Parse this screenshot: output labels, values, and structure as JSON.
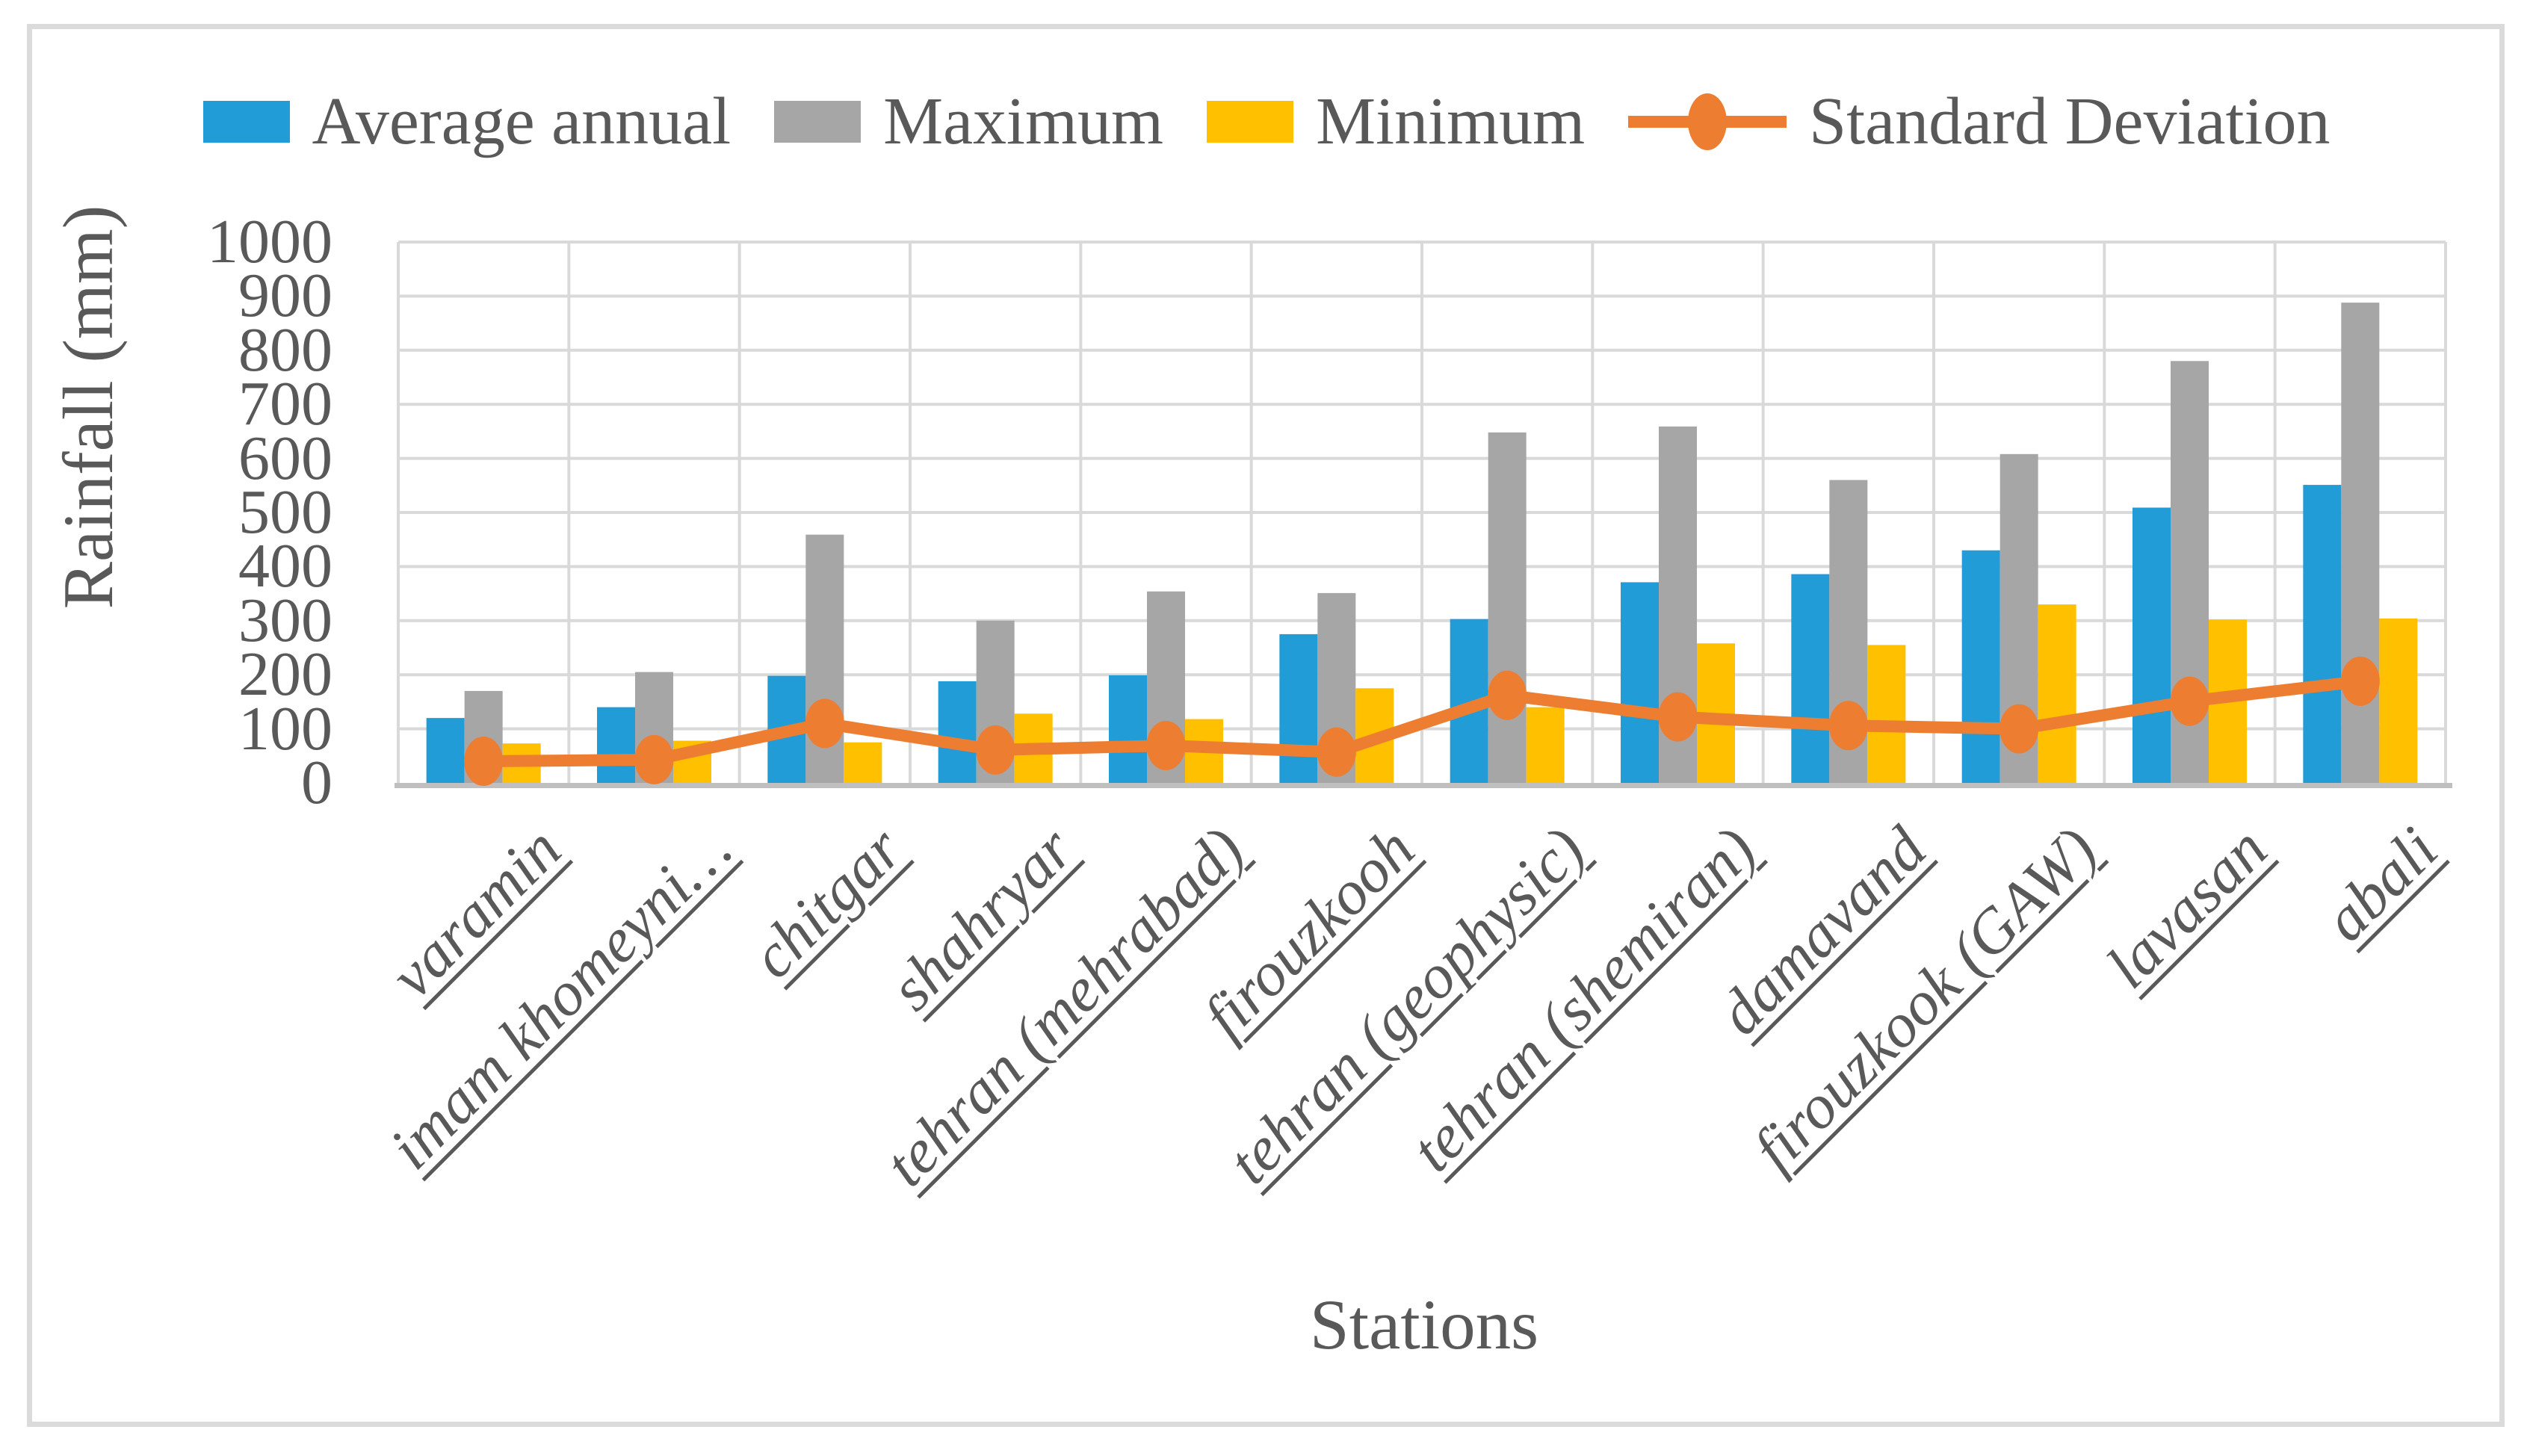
{
  "figure": {
    "background": "#ffffff",
    "frame_color": "#dbdbdb"
  },
  "legend": {
    "items": [
      {
        "label": "Average annual",
        "color": "#219cd7",
        "marker": "square"
      },
      {
        "label": "Maximum",
        "color": "#a6a6a6",
        "marker": "square"
      },
      {
        "label": "Minimum",
        "color": "#ffc000",
        "marker": "square"
      },
      {
        "label": "Standard Deviation",
        "color": "#ed7d31",
        "marker": "line-circle"
      }
    ]
  },
  "chart_data": {
    "type": "bar",
    "title": "",
    "xlabel": "Stations",
    "ylabel": "Rainfall (mm)",
    "ylim": [
      0,
      1000
    ],
    "ytick_step": 100,
    "yticks": [
      0,
      100,
      200,
      300,
      400,
      500,
      600,
      700,
      800,
      900,
      1000
    ],
    "grid": "both",
    "legend_position": "top",
    "categories": [
      "varamin",
      "imam khomeyni…",
      "chitgar",
      "shahryar",
      "tehran (mehrabad)",
      "firouzkooh",
      "tehran (geophysic)",
      "tehran (shemiran)",
      "damavand",
      "firouzkook (GAW)",
      "lavasan",
      "abali"
    ],
    "series": [
      {
        "name": "Average annual",
        "type": "bar",
        "color": "#219cd7",
        "values": [
          120,
          140,
          198,
          188,
          199,
          275,
          303,
          371,
          386,
          430,
          509,
          551
        ]
      },
      {
        "name": "Maximum",
        "type": "bar",
        "color": "#a6a6a6",
        "values": [
          170,
          205,
          459,
          300,
          354,
          351,
          648,
          659,
          560,
          608,
          780,
          888
        ]
      },
      {
        "name": "Minimum",
        "type": "bar",
        "color": "#ffc000",
        "values": [
          73,
          78,
          75,
          128,
          118,
          175,
          140,
          258,
          255,
          330,
          302,
          304
        ]
      },
      {
        "name": "Standard Deviation",
        "type": "line",
        "color": "#ed7d31",
        "values": [
          40,
          43,
          110,
          61,
          69,
          57,
          162,
          122,
          106,
          100,
          151,
          188
        ]
      }
    ]
  },
  "style": {
    "gridline_color": "#d9d9d9",
    "axis_line_color": "#bfbfbf",
    "text_color": "#595959"
  }
}
